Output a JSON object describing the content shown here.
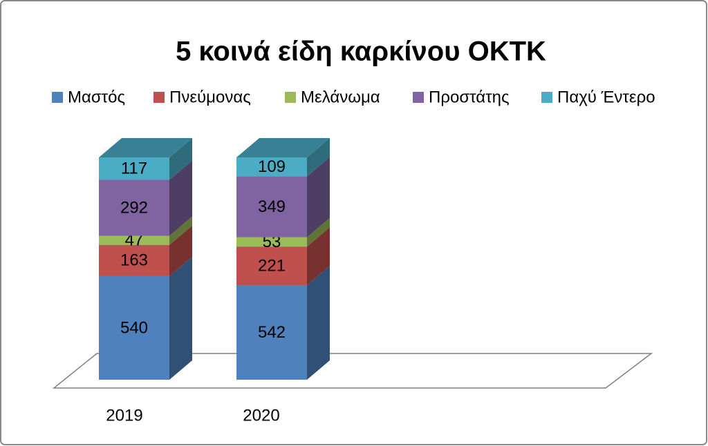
{
  "chart_data": {
    "type": "bar3d_stacked",
    "stacking": "percent",
    "title": "5 κοινά είδη καρκίνου ΟΚΤΚ",
    "categories": [
      "2019",
      "2020"
    ],
    "series": [
      {
        "name": "Μαστός",
        "color": "#4f81bd",
        "values": [
          540,
          542
        ]
      },
      {
        "name": "Πνεύμονας",
        "color": "#c0504d",
        "values": [
          163,
          221
        ]
      },
      {
        "name": "Μελάνωμα",
        "color": "#9bbb59",
        "values": [
          47,
          53
        ]
      },
      {
        "name": "Προστάτης",
        "color": "#8064a2",
        "values": [
          292,
          349
        ]
      },
      {
        "name": "Παχύ Έντερο",
        "color": "#4bacc6",
        "values": [
          117,
          109
        ]
      }
    ],
    "legend": "top"
  }
}
